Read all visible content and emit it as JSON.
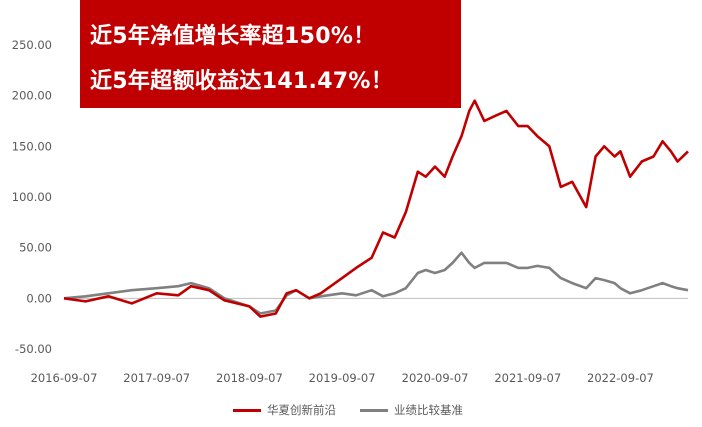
{
  "banner": {
    "line1": "近5年净值增长率超150%！",
    "line2": "近5年超额收益达141.47%！",
    "bg_color": "#c00000"
  },
  "chart_data": {
    "type": "line",
    "title": "",
    "xlabel": "",
    "ylabel": "",
    "ylim": [
      -50,
      250
    ],
    "yticks": [
      "250.00",
      "200.00",
      "150.00",
      "100.00",
      "50.00",
      "0.00",
      "-50.00"
    ],
    "xticks": [
      "2016-09-07",
      "2017-09-07",
      "2018-09-07",
      "2019-09-07",
      "2020-09-07",
      "2021-09-07",
      "2022-09-07"
    ],
    "x_range": [
      "2016-09-07",
      "2023-05-31"
    ],
    "grid": false,
    "legend_position": "bottom",
    "series": [
      {
        "name": "华夏创新前沿",
        "color": "#c00000",
        "x": [
          "2016-09-07",
          "2016-12-01",
          "2017-03-01",
          "2017-06-01",
          "2017-09-07",
          "2017-12-01",
          "2018-01-20",
          "2018-04-01",
          "2018-06-01",
          "2018-09-07",
          "2018-10-20",
          "2018-12-20",
          "2019-02-01",
          "2019-03-10",
          "2019-05-01",
          "2019-06-15",
          "2019-09-07",
          "2019-11-01",
          "2020-01-01",
          "2020-02-15",
          "2020-04-01",
          "2020-05-15",
          "2020-07-01",
          "2020-08-01",
          "2020-09-07",
          "2020-10-15",
          "2020-11-15",
          "2020-12-20",
          "2021-01-20",
          "2021-02-10",
          "2021-03-20",
          "2021-05-01",
          "2021-06-15",
          "2021-08-01",
          "2021-09-07",
          "2021-10-15",
          "2021-12-01",
          "2022-01-15",
          "2022-03-01",
          "2022-04-25",
          "2022-06-01",
          "2022-07-05",
          "2022-08-15",
          "2022-09-07",
          "2022-10-15",
          "2022-11-30",
          "2023-01-15",
          "2023-02-20",
          "2023-03-25",
          "2023-04-20",
          "2023-05-31"
        ],
        "values": [
          0,
          -3,
          2,
          -5,
          5,
          3,
          12,
          8,
          -2,
          -8,
          -18,
          -15,
          5,
          8,
          0,
          5,
          20,
          30,
          40,
          65,
          60,
          85,
          125,
          120,
          130,
          120,
          140,
          160,
          185,
          195,
          175,
          180,
          185,
          170,
          170,
          160,
          150,
          110,
          115,
          90,
          140,
          150,
          140,
          145,
          120,
          135,
          140,
          155,
          145,
          135,
          145
        ]
      },
      {
        "name": "业绩比较基准",
        "color": "#808080",
        "x": [
          "2016-09-07",
          "2016-12-01",
          "2017-03-01",
          "2017-06-01",
          "2017-09-07",
          "2017-12-01",
          "2018-01-20",
          "2018-04-01",
          "2018-06-01",
          "2018-09-07",
          "2018-10-20",
          "2018-12-20",
          "2019-02-01",
          "2019-03-10",
          "2019-05-01",
          "2019-06-15",
          "2019-09-07",
          "2019-11-01",
          "2020-01-01",
          "2020-02-15",
          "2020-04-01",
          "2020-05-15",
          "2020-07-01",
          "2020-08-01",
          "2020-09-07",
          "2020-10-15",
          "2020-11-15",
          "2020-12-20",
          "2021-01-20",
          "2021-02-10",
          "2021-03-20",
          "2021-05-01",
          "2021-06-15",
          "2021-08-01",
          "2021-09-07",
          "2021-10-15",
          "2021-12-01",
          "2022-01-15",
          "2022-03-01",
          "2022-04-25",
          "2022-06-01",
          "2022-07-05",
          "2022-08-15",
          "2022-09-07",
          "2022-10-15",
          "2022-11-30",
          "2023-01-15",
          "2023-02-20",
          "2023-03-25",
          "2023-04-20",
          "2023-05-31"
        ],
        "values": [
          0,
          2,
          5,
          8,
          10,
          12,
          15,
          10,
          0,
          -8,
          -15,
          -12,
          3,
          8,
          0,
          2,
          5,
          3,
          8,
          2,
          5,
          10,
          25,
          28,
          25,
          28,
          35,
          45,
          35,
          30,
          35,
          35,
          35,
          30,
          30,
          32,
          30,
          20,
          15,
          10,
          20,
          18,
          15,
          10,
          5,
          8,
          12,
          15,
          12,
          10,
          8
        ]
      }
    ]
  }
}
